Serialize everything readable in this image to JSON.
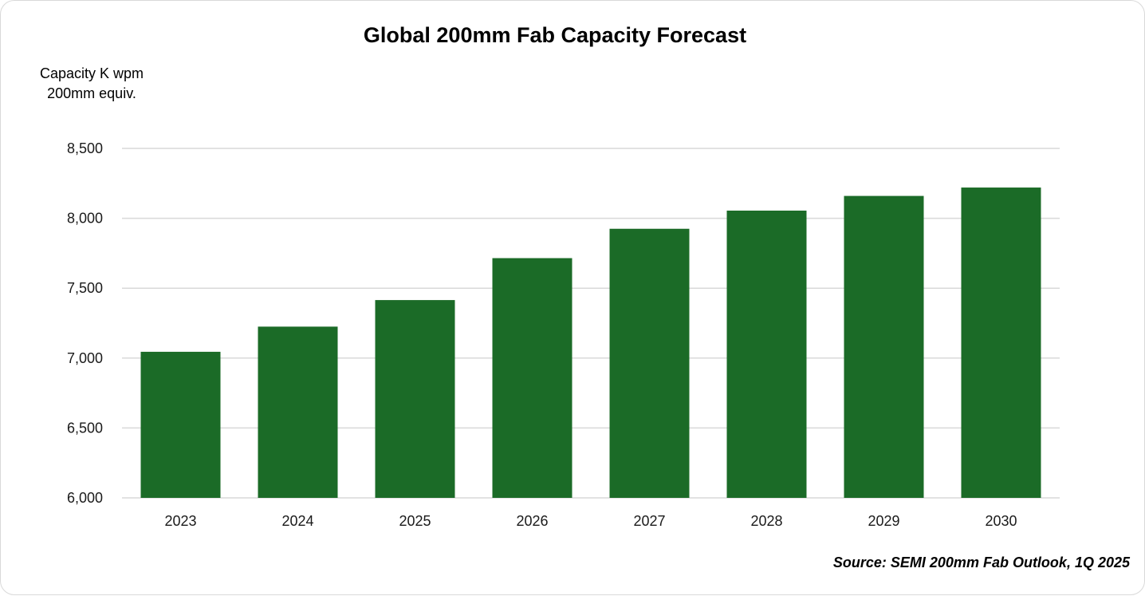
{
  "chart_data": {
    "type": "bar",
    "title": "Global 200mm Fab Capacity Forecast",
    "ylabel_lines": [
      "Capacity K wpm",
      "200mm equiv."
    ],
    "xlabel": "",
    "categories": [
      "2023",
      "2024",
      "2025",
      "2026",
      "2027",
      "2028",
      "2029",
      "2030"
    ],
    "values": [
      7045,
      7225,
      7415,
      7715,
      7925,
      8055,
      8160,
      8220
    ],
    "ylim": [
      6000,
      8500
    ],
    "yticks": [
      6000,
      6500,
      7000,
      7500,
      8000,
      8500
    ],
    "ytick_labels": [
      "6,000",
      "6,500",
      "7,000",
      "7,500",
      "8,000",
      "8,500"
    ],
    "grid": true,
    "legend": "none",
    "bar_color": "#1b6b27",
    "grid_color": "#d9d9d9",
    "source": "Source: SEMI 200mm Fab Outlook, 1Q 2025"
  }
}
